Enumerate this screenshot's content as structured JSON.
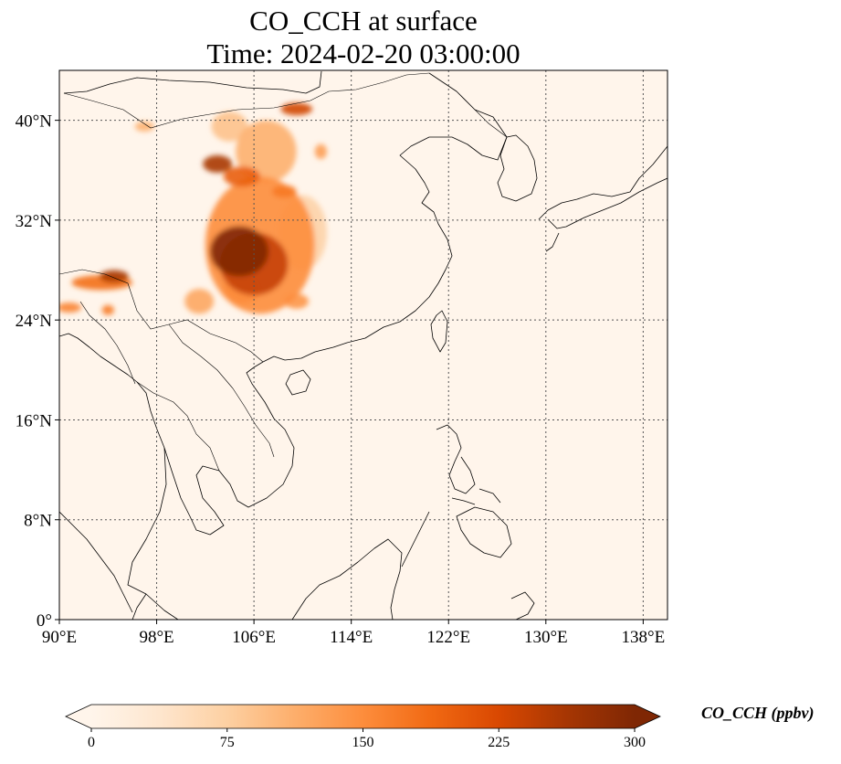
{
  "title": {
    "line1": "CO_CCH at surface",
    "line2": "Time: 2024-02-20 03:00:00"
  },
  "map": {
    "variable": "CO_CCH",
    "level": "surface",
    "lon_range": [
      90,
      140
    ],
    "lat_range": [
      0,
      44
    ],
    "x_ticks": [
      {
        "value": 90,
        "label": "90°E"
      },
      {
        "value": 98,
        "label": "98°E"
      },
      {
        "value": 106,
        "label": "106°E"
      },
      {
        "value": 114,
        "label": "114°E"
      },
      {
        "value": 122,
        "label": "122°E"
      },
      {
        "value": 130,
        "label": "130°E"
      },
      {
        "value": 138,
        "label": "138°E"
      }
    ],
    "y_ticks": [
      {
        "value": 0,
        "label": "0°"
      },
      {
        "value": 8,
        "label": "8°N"
      },
      {
        "value": 16,
        "label": "16°N"
      },
      {
        "value": 24,
        "label": "24°N"
      },
      {
        "value": 32,
        "label": "32°N"
      },
      {
        "value": 40,
        "label": "40°N"
      }
    ],
    "gridlines": true,
    "background_color": "#fff5eb",
    "hotspots": [
      {
        "lon": 104.8,
        "lat": 29.5,
        "value": 300,
        "r_lon": 2.4,
        "r_lat": 2.0
      },
      {
        "lon": 106.0,
        "lat": 28.5,
        "value": 240,
        "r_lon": 2.8,
        "r_lat": 2.5
      },
      {
        "lon": 106.5,
        "lat": 30.0,
        "value": 150,
        "r_lon": 4.5,
        "r_lat": 5.5
      },
      {
        "lon": 103.0,
        "lat": 36.5,
        "value": 260,
        "r_lon": 1.2,
        "r_lat": 0.7
      },
      {
        "lon": 105.0,
        "lat": 35.5,
        "value": 200,
        "r_lon": 1.5,
        "r_lat": 0.8
      },
      {
        "lon": 107.0,
        "lat": 37.5,
        "value": 110,
        "r_lon": 2.5,
        "r_lat": 2.5
      },
      {
        "lon": 104.0,
        "lat": 39.5,
        "value": 90,
        "r_lon": 1.5,
        "r_lat": 1.2
      },
      {
        "lon": 109.5,
        "lat": 40.9,
        "value": 230,
        "r_lon": 1.3,
        "r_lat": 0.5
      },
      {
        "lon": 108.5,
        "lat": 34.3,
        "value": 170,
        "r_lon": 1.0,
        "r_lat": 0.5
      },
      {
        "lon": 111.5,
        "lat": 37.5,
        "value": 130,
        "r_lon": 0.5,
        "r_lat": 0.6
      },
      {
        "lon": 110.0,
        "lat": 31.0,
        "value": 70,
        "r_lon": 2.0,
        "r_lat": 3.0
      },
      {
        "lon": 109.5,
        "lat": 25.5,
        "value": 140,
        "r_lon": 1.0,
        "r_lat": 0.6
      },
      {
        "lon": 101.5,
        "lat": 25.5,
        "value": 120,
        "r_lon": 1.2,
        "r_lat": 1.0
      },
      {
        "lon": 105.0,
        "lat": 26.5,
        "value": 150,
        "r_lon": 1.5,
        "r_lat": 1.2
      },
      {
        "lon": 97.0,
        "lat": 39.5,
        "value": 110,
        "r_lon": 0.8,
        "r_lat": 0.4
      },
      {
        "lon": 93.5,
        "lat": 27.0,
        "value": 180,
        "r_lon": 2.5,
        "r_lat": 0.6
      },
      {
        "lon": 94.5,
        "lat": 27.5,
        "value": 260,
        "r_lon": 1.2,
        "r_lat": 0.5
      },
      {
        "lon": 90.8,
        "lat": 25.0,
        "value": 160,
        "r_lon": 1.0,
        "r_lat": 0.4
      },
      {
        "lon": 94.0,
        "lat": 24.8,
        "value": 170,
        "r_lon": 0.5,
        "r_lat": 0.4
      }
    ]
  },
  "colorbar": {
    "label": "CO_CCH (ppbv)",
    "min": 0,
    "max": 300,
    "extend": "both",
    "ticks": [
      {
        "value": 0,
        "label": "0"
      },
      {
        "value": 75,
        "label": "75"
      },
      {
        "value": 150,
        "label": "150"
      },
      {
        "value": 225,
        "label": "225"
      },
      {
        "value": 300,
        "label": "300"
      }
    ],
    "colormap": [
      "#fff5eb",
      "#fee6ce",
      "#fdd0a2",
      "#fdae6b",
      "#fd8d3c",
      "#f16913",
      "#d94801",
      "#a63603",
      "#7f2704"
    ]
  }
}
